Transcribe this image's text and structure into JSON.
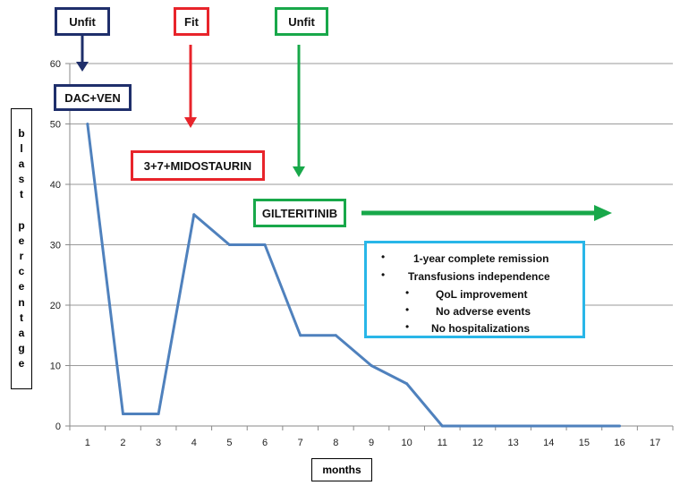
{
  "chart_data": {
    "type": "line",
    "title": "",
    "xlabel": "months",
    "ylabel": "blast percentage",
    "x": [
      1,
      2,
      3,
      4,
      5,
      6,
      7,
      8,
      9,
      10,
      11,
      12,
      13,
      14,
      15,
      16
    ],
    "x_ticks": [
      "1",
      "2",
      "3",
      "4",
      "5",
      "6",
      "7",
      "8",
      "9",
      "10",
      "11",
      "12",
      "13",
      "14",
      "15",
      "16",
      "17"
    ],
    "y_ticks": [
      "0",
      "10",
      "20",
      "30",
      "40",
      "50",
      "60"
    ],
    "xlim": [
      0.5,
      17.5
    ],
    "ylim": [
      0,
      60
    ],
    "grid": true,
    "series": [
      {
        "values": [
          50,
          2,
          2,
          35,
          30,
          30,
          15,
          15,
          10,
          7,
          0,
          0,
          0,
          0,
          0,
          0
        ]
      }
    ],
    "line_color": "#4f81bd",
    "annotations": {
      "unfit_1": "Unfit",
      "fit": "Fit",
      "unfit_2": "Unfit",
      "dac_ven": "DAC+VEN",
      "midostaurin": "3+7+MIDOSTAURIN",
      "gilteritinib": "GILTERITINIB",
      "outcomes": [
        "1-year complete remission",
        "Transfusions independence",
        "QoL improvement",
        "No adverse events",
        "No hospitalizations"
      ],
      "bullet": "•"
    },
    "colors": {
      "navy": "#1f2f6b",
      "red": "#e8242b",
      "green": "#18a84a",
      "cyan": "#29b6e8"
    }
  }
}
